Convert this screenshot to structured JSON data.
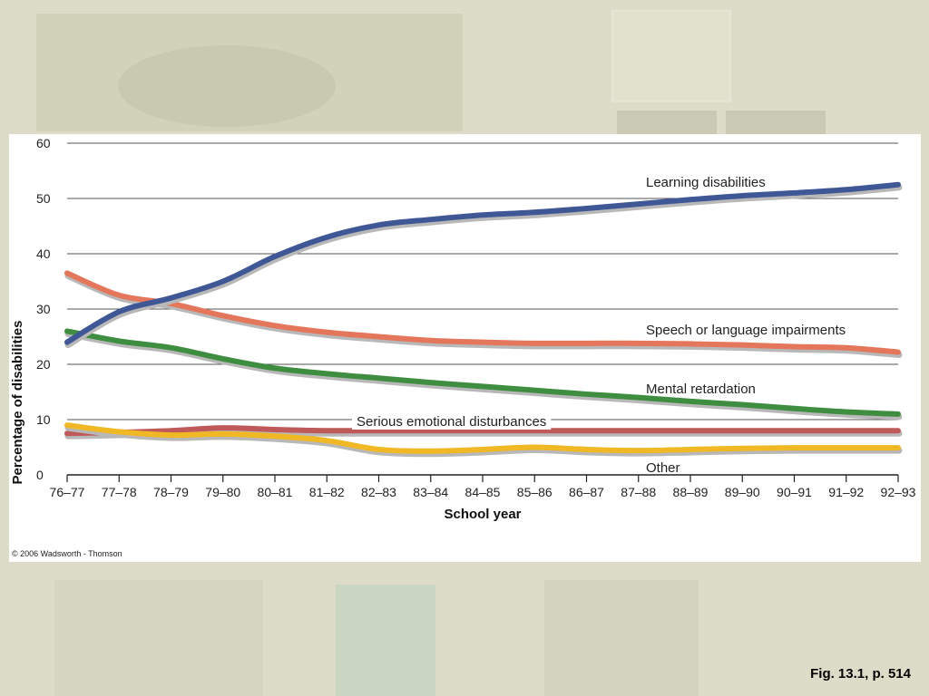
{
  "figure_caption": "Fig. 13.1, p. 514",
  "copyright": "© 2006 Wadsworth - Thomson",
  "chart_data": {
    "type": "line",
    "title": "",
    "xlabel": "School year",
    "ylabel": "Percentage of disabilities",
    "ylim": [
      0,
      60
    ],
    "yticks": [
      0,
      10,
      20,
      30,
      40,
      50,
      60
    ],
    "grid": true,
    "categories": [
      "76–77",
      "77–78",
      "78–79",
      "79–80",
      "80–81",
      "81–82",
      "82–83",
      "83–84",
      "84–85",
      "85–86",
      "86–87",
      "87–88",
      "88–89",
      "89–90",
      "90–91",
      "91–92",
      "92–93"
    ],
    "series": [
      {
        "name": "Learning disabilities",
        "color": "#3f5895",
        "values": [
          24,
          29.5,
          32,
          35,
          39.5,
          43,
          45.2,
          46.2,
          47,
          47.5,
          48.2,
          49,
          49.8,
          50.5,
          51,
          51.6,
          52.5
        ]
      },
      {
        "name": "Speech or language impairments",
        "color": "#e4765c",
        "values": [
          36.5,
          32.5,
          31,
          28.8,
          27,
          25.8,
          25,
          24.3,
          24,
          23.8,
          23.8,
          23.8,
          23.7,
          23.5,
          23.2,
          23,
          22.2
        ]
      },
      {
        "name": "Mental retardation",
        "color": "#3f8d40",
        "values": [
          26,
          24.2,
          23,
          21,
          19.3,
          18.3,
          17.5,
          16.7,
          16,
          15.3,
          14.6,
          14,
          13.3,
          12.7,
          12,
          11.4,
          11
        ]
      },
      {
        "name": "Serious emotional disturbances",
        "color": "#c05a5a",
        "values": [
          7.5,
          7.7,
          8,
          8.5,
          8.2,
          8,
          8,
          8,
          8,
          8,
          8,
          8,
          8,
          8,
          8,
          8,
          8
        ]
      },
      {
        "name": "Other",
        "color": "#f0b825",
        "values": [
          9,
          7.8,
          7.2,
          7.4,
          7,
          6.2,
          4.6,
          4.3,
          4.6,
          5,
          4.6,
          4.4,
          4.6,
          4.8,
          4.9,
          4.9,
          4.9
        ]
      }
    ]
  },
  "series_labels": [
    {
      "series": "Learning disabilities",
      "text": "Learning disabilities"
    },
    {
      "series": "Speech or language impairments",
      "text": "Speech or language impairments"
    },
    {
      "series": "Mental retardation",
      "text": "Mental retardation"
    },
    {
      "series": "Serious emotional disturbances",
      "text": "Serious emotional disturbances"
    },
    {
      "series": "Other",
      "text": "Other"
    }
  ]
}
